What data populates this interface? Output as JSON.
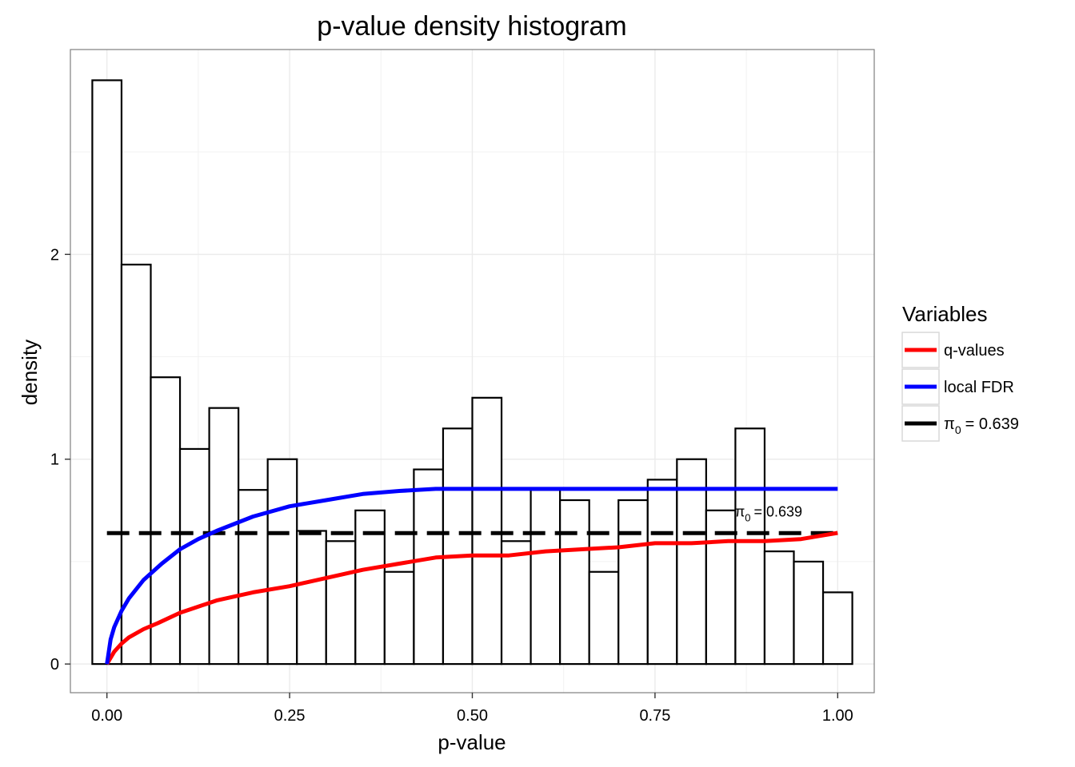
{
  "chart_data": {
    "type": "bar",
    "title": "p-value density histogram",
    "xlabel": "p-value",
    "ylabel": "density",
    "xlim": [
      -0.05,
      1.05
    ],
    "ylim": [
      -0.14,
      3.0
    ],
    "x_ticks": [
      "0.00",
      "0.25",
      "0.50",
      "0.75",
      "1.00"
    ],
    "x_tick_values": [
      0,
      0.25,
      0.5,
      0.75,
      1.0
    ],
    "y_ticks": [
      "0",
      "1",
      "2"
    ],
    "y_tick_values": [
      0,
      1,
      2
    ],
    "grid": true,
    "histogram": {
      "bin_width": 0.04,
      "bin_edges": [
        -0.02,
        0.02,
        0.06,
        0.1,
        0.14,
        0.18,
        0.22,
        0.26,
        0.3,
        0.34,
        0.38,
        0.42,
        0.46,
        0.5,
        0.54,
        0.58,
        0.62,
        0.66,
        0.7,
        0.74,
        0.78,
        0.82,
        0.86,
        0.9,
        0.94,
        0.98,
        1.02
      ],
      "density": [
        2.85,
        1.95,
        1.4,
        1.05,
        1.25,
        0.85,
        1.0,
        0.65,
        0.6,
        0.75,
        0.45,
        0.95,
        1.15,
        1.3,
        0.6,
        0.85,
        0.8,
        0.45,
        0.8,
        0.9,
        1.0,
        0.75,
        1.15,
        0.55,
        0.5,
        0.35
      ]
    },
    "series": [
      {
        "name": "q-values",
        "color": "#ff0000",
        "x": [
          0,
          0.01,
          0.02,
          0.03,
          0.05,
          0.07,
          0.1,
          0.15,
          0.2,
          0.25,
          0.3,
          0.35,
          0.4,
          0.45,
          0.5,
          0.55,
          0.6,
          0.65,
          0.7,
          0.75,
          0.8,
          0.85,
          0.9,
          0.95,
          1.0
        ],
        "y": [
          0,
          0.06,
          0.1,
          0.13,
          0.17,
          0.2,
          0.25,
          0.31,
          0.35,
          0.38,
          0.42,
          0.46,
          0.49,
          0.52,
          0.53,
          0.53,
          0.55,
          0.56,
          0.57,
          0.59,
          0.59,
          0.6,
          0.6,
          0.61,
          0.64
        ]
      },
      {
        "name": "local FDR",
        "color": "#0000ff",
        "x": [
          0,
          0.005,
          0.01,
          0.02,
          0.03,
          0.05,
          0.075,
          0.1,
          0.125,
          0.15,
          0.2,
          0.25,
          0.3,
          0.35,
          0.4,
          0.45,
          0.5,
          0.6,
          0.7,
          0.8,
          0.9,
          1.0
        ],
        "y": [
          0,
          0.12,
          0.18,
          0.26,
          0.32,
          0.41,
          0.49,
          0.56,
          0.61,
          0.65,
          0.72,
          0.77,
          0.8,
          0.83,
          0.845,
          0.855,
          0.855,
          0.855,
          0.855,
          0.855,
          0.855,
          0.855
        ]
      },
      {
        "name": "π̂₀ = 0.639",
        "color": "#000000",
        "dashed": true,
        "x": [
          0,
          1.0
        ],
        "y": [
          0.639,
          0.639
        ]
      }
    ],
    "annotation": {
      "pi_symbol": "π",
      "subscript": "0",
      "equals": "= 0.639",
      "x": 0.9,
      "y": 0.72
    },
    "legend": {
      "title": "Variables",
      "placement": "right",
      "entries": [
        {
          "label": "q-values",
          "color": "#ff0000"
        },
        {
          "label": "local FDR",
          "color": "#0000ff"
        },
        {
          "pi_symbol": "π",
          "subscript": "0",
          "equals": "= 0.639",
          "color": "#000000"
        }
      ]
    },
    "colors": {
      "panel_border": "#7f7f7f",
      "grid": "#ebebeb",
      "bar_fill": "#ffffff",
      "bar_stroke": "#000000"
    }
  }
}
